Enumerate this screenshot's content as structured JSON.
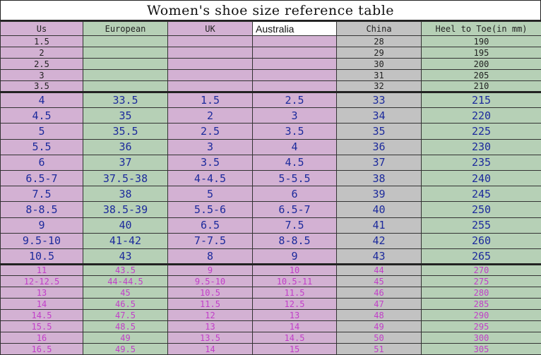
{
  "title": "Women's shoe size reference table",
  "headers": [
    "Us",
    "European",
    "UK",
    "Australia",
    "China",
    "Heel to Toe(in mm)"
  ],
  "colors": {
    "pink_cell": "#d3b1d3",
    "green_cell": "#b6d0b6",
    "gray_cell": "#c2c2c2",
    "blue_text": "#1c2a9c",
    "magenta_text": "#c13ec8"
  },
  "small_rows": [
    [
      "1.5",
      "",
      "",
      "",
      "28",
      "190"
    ],
    [
      "2",
      "",
      "",
      "",
      "29",
      "195"
    ],
    [
      "2.5",
      "",
      "",
      "",
      "30",
      "200"
    ],
    [
      "3",
      "",
      "",
      "",
      "31",
      "205"
    ],
    [
      "3.5",
      "",
      "",
      "",
      "32",
      "210"
    ]
  ],
  "big_rows": [
    [
      "4",
      "33.5",
      "1.5",
      "2.5",
      "33",
      "215"
    ],
    [
      "4.5",
      "35",
      "2",
      "3",
      "34",
      "220"
    ],
    [
      "5",
      "35.5",
      "2.5",
      "3.5",
      "35",
      "225"
    ],
    [
      "5.5",
      "36",
      "3",
      "4",
      "36",
      "230"
    ],
    [
      "6",
      "37",
      "3.5",
      "4.5",
      "37",
      "235"
    ],
    [
      "6.5-7",
      "37.5-38",
      "4-4.5",
      "5-5.5",
      "38",
      "240"
    ],
    [
      "7.5",
      "38",
      "5",
      "6",
      "39",
      "245"
    ],
    [
      "8-8.5",
      "38.5-39",
      "5.5-6",
      "6.5-7",
      "40",
      "250"
    ],
    [
      "9",
      "40",
      "6.5",
      "7.5",
      "41",
      "255"
    ],
    [
      "9.5-10",
      "41-42",
      "7-7.5",
      "8-8.5",
      "42",
      "260"
    ],
    [
      "10.5",
      "43",
      "8",
      "9",
      "43",
      "265"
    ]
  ],
  "pink_rows": [
    [
      "11",
      "43.5",
      "9",
      "10",
      "44",
      "270"
    ],
    [
      "12-12.5",
      "44-44.5",
      "9.5-10",
      "10.5-11",
      "45",
      "275"
    ],
    [
      "13",
      "45",
      "10.5",
      "11.5",
      "46",
      "280"
    ],
    [
      "14",
      "46.5",
      "11.5",
      "12.5",
      "47",
      "285"
    ],
    [
      "14.5",
      "47.5",
      "12",
      "13",
      "48",
      "290"
    ],
    [
      "15.5",
      "48.5",
      "13",
      "14",
      "49",
      "295"
    ],
    [
      "16",
      "49",
      "13.5",
      "14.5",
      "50",
      "300"
    ],
    [
      "16.5",
      "49.5",
      "14",
      "15",
      "51",
      "305"
    ]
  ]
}
